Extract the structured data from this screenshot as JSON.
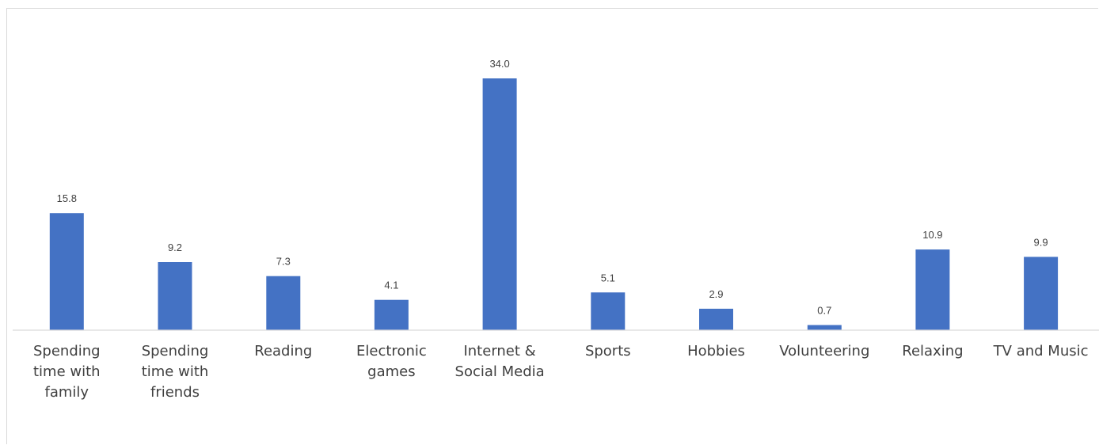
{
  "chart_data": {
    "type": "bar",
    "title": "",
    "xlabel": "",
    "ylabel": "",
    "categories": [
      "Spending time with family",
      "Spending time with friends",
      "Reading",
      "Electronic games",
      "Internet & Social Media",
      "Sports",
      "Hobbies",
      "Volunteering",
      "Relaxing",
      "TV and Music"
    ],
    "category_lines": [
      [
        "Spending",
        "time with",
        "family"
      ],
      [
        "Spending",
        "time with",
        "friends"
      ],
      [
        "Reading"
      ],
      [
        "Electronic",
        "games"
      ],
      [
        "Internet &",
        "Social Media"
      ],
      [
        "Sports"
      ],
      [
        "Hobbies"
      ],
      [
        "Volunteering"
      ],
      [
        "Relaxing"
      ],
      [
        "TV and Music"
      ]
    ],
    "values": [
      15.8,
      9.2,
      7.3,
      4.1,
      34.0,
      5.1,
      2.9,
      0.7,
      10.9,
      9.9
    ],
    "value_labels": [
      "15.8",
      "9.2",
      "7.3",
      "4.1",
      "34.0",
      "5.1",
      "2.9",
      "0.7",
      "10.9",
      "9.9"
    ],
    "ylim": [
      0,
      34
    ],
    "grid": false,
    "legend": "none",
    "bar_color": "#4472C4",
    "axis_color": "#d9d9d9",
    "text_color": "#404040"
  }
}
